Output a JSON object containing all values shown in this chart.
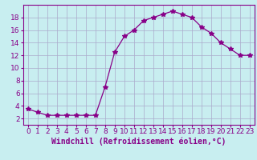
{
  "x": [
    0,
    1,
    2,
    3,
    4,
    5,
    6,
    7,
    8,
    9,
    10,
    11,
    12,
    13,
    14,
    15,
    16,
    17,
    18,
    19,
    20,
    21,
    22,
    23
  ],
  "y": [
    3.5,
    3.0,
    2.5,
    2.5,
    2.5,
    2.5,
    2.5,
    2.5,
    7.0,
    12.5,
    15.0,
    16.0,
    17.5,
    18.0,
    18.5,
    19.0,
    18.5,
    18.0,
    16.5,
    15.5,
    14.0,
    13.0,
    12.0,
    12.0
  ],
  "xlabel": "Windchill (Refroidissement éolien,°C)",
  "xlim": [
    -0.5,
    23.5
  ],
  "ylim": [
    1.0,
    20.0
  ],
  "yticks": [
    2,
    4,
    6,
    8,
    10,
    12,
    14,
    16,
    18
  ],
  "xticks": [
    0,
    1,
    2,
    3,
    4,
    5,
    6,
    7,
    8,
    9,
    10,
    11,
    12,
    13,
    14,
    15,
    16,
    17,
    18,
    19,
    20,
    21,
    22,
    23
  ],
  "line_color": "#880088",
  "marker": "*",
  "marker_size": 4,
  "bg_color": "#c8eef0",
  "grid_color": "#aaaacc",
  "xlabel_fontsize": 7,
  "tick_fontsize": 6.5
}
